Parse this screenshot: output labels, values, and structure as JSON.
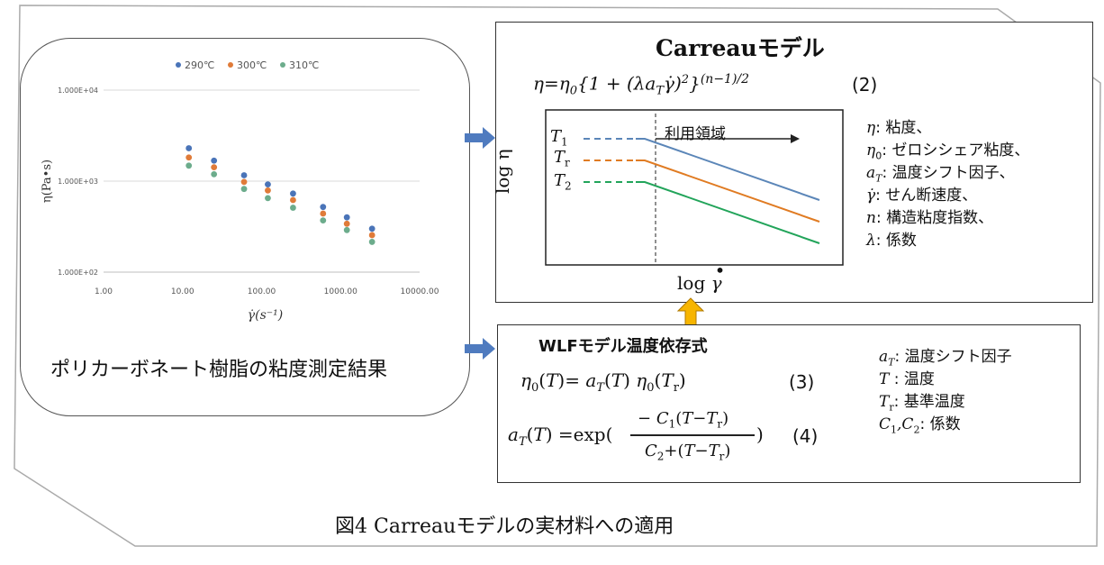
{
  "caption": "図4 Carreauモデルの実材料への適用",
  "chart_card": {
    "caption": "ポリカーボネート樹脂の粘度測定結果"
  },
  "chart_data": {
    "type": "scatter",
    "xscale": "log",
    "yscale": "log",
    "xlabel": "γ̇(s⁻¹)",
    "ylabel": "η(Pa•s)",
    "xlim": [
      1,
      10000
    ],
    "ylim": [
      100,
      10000
    ],
    "x_tick_labels": [
      "1.00",
      "10.00",
      "100.00",
      "1000.00",
      "10000.00"
    ],
    "y_tick_labels": [
      "1.000E+04",
      "1.000E+03",
      "1.000E+02"
    ],
    "legend_position": "top",
    "grid": "horizontal",
    "series": [
      {
        "name": "290℃",
        "color": "#4a74b8",
        "x": [
          12,
          25,
          60,
          120,
          250,
          600,
          1200,
          2500
        ],
        "y": [
          2300,
          1680,
          1160,
          920,
          730,
          520,
          400,
          300
        ]
      },
      {
        "name": "300℃",
        "color": "#e07b39",
        "x": [
          12,
          25,
          60,
          120,
          250,
          600,
          1200,
          2500
        ],
        "y": [
          1820,
          1420,
          980,
          790,
          620,
          440,
          340,
          255
        ]
      },
      {
        "name": "310℃",
        "color": "#6cac8c",
        "x": [
          12,
          25,
          60,
          120,
          250,
          600,
          1200,
          2500
        ],
        "y": [
          1480,
          1190,
          820,
          650,
          510,
          370,
          290,
          215
        ]
      }
    ]
  },
  "carreau": {
    "title": "Carreauモデル",
    "eq_number": "(2)",
    "diagram": {
      "x_label": "log",
      "y_label": "log η",
      "region_label": "利用領域",
      "curves": [
        {
          "label": "T1",
          "color": "#5b86b8"
        },
        {
          "label": "Tr",
          "color": "#e07b22"
        },
        {
          "label": "T2",
          "color": "#22a45a"
        }
      ]
    },
    "definitions": [
      {
        "symbol": "η",
        "text": ": 粘度、"
      },
      {
        "symbol": "η0",
        "text": ": ゼロシシェア粘度、"
      },
      {
        "symbol": "aT",
        "text": ": 温度シフト因子、"
      },
      {
        "symbol": "γ̇",
        "text": ": せん断速度、"
      },
      {
        "symbol": "n",
        "text": ": 構造粘度指数、"
      },
      {
        "symbol": "λ",
        "text": ": 係数"
      }
    ]
  },
  "wlf": {
    "title": "WLFモデル温度依存式",
    "eq3_number": "(3)",
    "eq4_number": "(4)",
    "definitions": [
      {
        "symbol": "aT",
        "text": ": 温度シフト因子"
      },
      {
        "symbol": "T",
        "text": " : 温度"
      },
      {
        "symbol": "Tr",
        "text": ": 基準温度"
      },
      {
        "symbol": "C1,C2",
        "text": ": 係数"
      }
    ]
  },
  "colors": {
    "arrow_blue": "#4f7bbf",
    "arrow_yellow": "#f7b500",
    "arrow_yellow_edge": "#b07a00"
  }
}
